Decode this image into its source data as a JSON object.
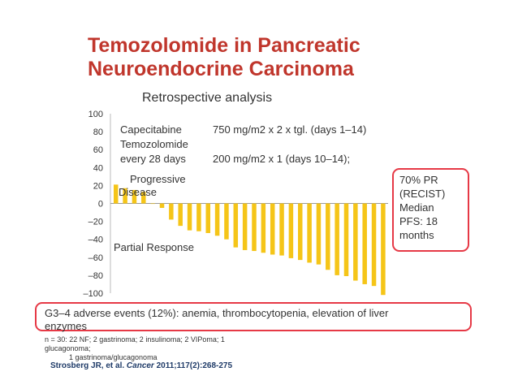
{
  "slide": {
    "title": "Temozolomide in Pancreatic Neuroendocrine Carcinoma",
    "subtitle": "Retrospective analysis"
  },
  "regimen": {
    "drug1": "Capecitabine",
    "drug2": "Temozolomide",
    "schedule": "every 28 days",
    "dose1": "750 mg/m2 x 2 x tgl. (days 1–14)",
    "dose2": "200 mg/m2 x 1 (days 10–14);"
  },
  "labels": {
    "progressive": "Progressive Disease",
    "partial": "Partial Response"
  },
  "pr_box": {
    "text": "70% PR (RECIST) Median PFS: 18 months"
  },
  "adverse_events": "G3–4 adverse events (12%): anemia, thrombocytopenia, elevation of liver enzymes",
  "footnote": {
    "line1": "n = 30: 22 NF; 2 gastrinoma; 2 insulinoma; 2 VIPoma; 1 glucagonoma;",
    "line2": "1 gastrinoma/glucagonoma"
  },
  "citation": {
    "authors": "Strosberg JR, et al.",
    "journal": "Cancer",
    "ref": "2011;117(2):268-275"
  },
  "chart_data": {
    "type": "bar",
    "ylim": [
      -100,
      100
    ],
    "yticks": [
      "100",
      "80",
      "60",
      "40",
      "20",
      "0",
      "–20",
      "–40",
      "–60",
      "–80",
      "–100"
    ],
    "bar_color": "#f5c518",
    "values": [
      21,
      17,
      15,
      13,
      0,
      -5,
      -18,
      -25,
      -30,
      -31,
      -33,
      -36,
      -40,
      -49,
      -52,
      -53,
      -55,
      -57,
      -58,
      -61,
      -63,
      -66,
      -68,
      -74,
      -80,
      -81,
      -86,
      -90,
      -92,
      -102
    ]
  }
}
